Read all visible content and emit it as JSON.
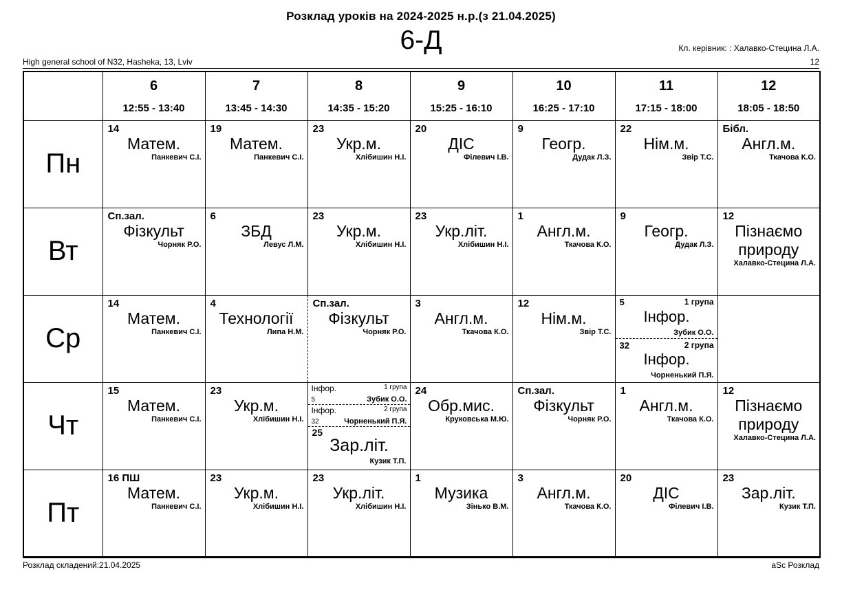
{
  "header": {
    "title": "Розклад уроків на 2024-2025 н.р.(з 21.04.2025)",
    "class_name": "6-Д",
    "class_teacher_label": "Кл. керівник: : Халавко-Стецина Л.А.",
    "page_number": "12",
    "school_name": "High general school of N32, Hasheka, 13, Lviv"
  },
  "periods": [
    {
      "number": "6",
      "time": "12:55 - 13:40"
    },
    {
      "number": "7",
      "time": "13:45 - 14:30"
    },
    {
      "number": "8",
      "time": "14:35 - 15:20"
    },
    {
      "number": "9",
      "time": "15:25 - 16:10"
    },
    {
      "number": "10",
      "time": "16:25 - 17:10"
    },
    {
      "number": "11",
      "time": "17:15 - 18:00"
    },
    {
      "number": "12",
      "time": "18:05 - 18:50"
    }
  ],
  "schedule": [
    {
      "day": "Пн",
      "cells": [
        {
          "type": "lesson",
          "room": "14",
          "subject": "Матем.",
          "teacher": "Панкевич С.І."
        },
        {
          "type": "lesson",
          "room": "19",
          "subject": "Матем.",
          "teacher": "Панкевич С.І."
        },
        {
          "type": "lesson",
          "room": "23",
          "subject": "Укр.м.",
          "teacher": "Хлібишин Н.І."
        },
        {
          "type": "lesson",
          "room": "20",
          "subject": "ДІС",
          "teacher": "Філевич І.В."
        },
        {
          "type": "lesson",
          "room": "9",
          "subject": "Геогр.",
          "teacher": "Дудак Л.З."
        },
        {
          "type": "lesson",
          "room": "22",
          "subject": "Нім.м.",
          "teacher": "Звір Т.С."
        },
        {
          "type": "lesson",
          "room": "Бібл.",
          "subject": "Англ.м.",
          "teacher": "Ткачова К.О."
        }
      ]
    },
    {
      "day": "Вт",
      "cells": [
        {
          "type": "lesson",
          "room": "Сп.зал.",
          "subject": "Фізкульт",
          "teacher": "Чорняк Р.О."
        },
        {
          "type": "lesson",
          "room": "6",
          "subject": "ЗБД",
          "teacher": "Левус Л.М."
        },
        {
          "type": "lesson",
          "room": "23",
          "subject": "Укр.м.",
          "teacher": "Хлібишин Н.І."
        },
        {
          "type": "lesson",
          "room": "23",
          "subject": "Укр.літ.",
          "teacher": "Хлібишин Н.І."
        },
        {
          "type": "lesson",
          "room": "1",
          "subject": "Англ.м.",
          "teacher": "Ткачова К.О."
        },
        {
          "type": "lesson",
          "room": "9",
          "subject": "Геогр.",
          "teacher": "Дудак Л.З."
        },
        {
          "type": "lesson",
          "room": "12",
          "subject": "Пізнаємо природу",
          "teacher": "Халавко-Стецина Л.А."
        }
      ]
    },
    {
      "day": "Ср",
      "cells": [
        {
          "type": "lesson",
          "room": "14",
          "subject": "Матем.",
          "teacher": "Панкевич С.І."
        },
        {
          "type": "lesson",
          "room": "4",
          "subject": "Технології",
          "teacher": "Липа Н.М."
        },
        {
          "type": "lesson",
          "room": "Сп.зал.",
          "subject": "Фізкульт",
          "teacher": "Чорняк Р.О.",
          "dashed_left": true
        },
        {
          "type": "lesson",
          "room": "3",
          "subject": "Англ.м.",
          "teacher": "Ткачова К.О."
        },
        {
          "type": "lesson",
          "room": "12",
          "subject": "Нім.м.",
          "teacher": "Звір Т.С."
        },
        {
          "type": "split",
          "groups": [
            {
              "room": "5",
              "group": "1 група",
              "subject": "Інфор.",
              "teacher": "Зубик О.О."
            },
            {
              "room": "32",
              "group": "2 група",
              "subject": "Інфор.",
              "teacher": "Чорненький П.Я."
            }
          ]
        },
        {
          "type": "empty"
        }
      ]
    },
    {
      "day": "Чт",
      "cells": [
        {
          "type": "lesson",
          "room": "15",
          "subject": "Матем.",
          "teacher": "Панкевич С.І."
        },
        {
          "type": "lesson",
          "room": "23",
          "subject": "Укр.м.",
          "teacher": "Хлібишин Н.І."
        },
        {
          "type": "mixed",
          "groups": [
            {
              "room": "5",
              "group": "1 група",
              "subject": "Інфор.",
              "teacher": "Зубик О.О."
            },
            {
              "room": "32",
              "group": "2 група",
              "subject": "Інфор.",
              "teacher": "Чорненький П.Я."
            }
          ],
          "lesson": {
            "room": "25",
            "subject": "Зар.літ.",
            "teacher": "Кузик Т.П."
          }
        },
        {
          "type": "lesson",
          "room": "24",
          "subject": "Обр.мис.",
          "teacher": "Круковська М.Ю."
        },
        {
          "type": "lesson",
          "room": "Сп.зал.",
          "subject": "Фізкульт",
          "teacher": "Чорняк Р.О."
        },
        {
          "type": "lesson",
          "room": "1",
          "subject": "Англ.м.",
          "teacher": "Ткачова К.О."
        },
        {
          "type": "lesson",
          "room": "12",
          "subject": "Пізнаємо природу",
          "teacher": "Халавко-Стецина Л.А."
        }
      ]
    },
    {
      "day": "Пт",
      "cells": [
        {
          "type": "lesson",
          "room": "16 ПШ",
          "subject": "Матем.",
          "teacher": "Панкевич С.І."
        },
        {
          "type": "lesson",
          "room": "23",
          "subject": "Укр.м.",
          "teacher": "Хлібишин Н.І."
        },
        {
          "type": "lesson",
          "room": "23",
          "subject": "Укр.літ.",
          "teacher": "Хлібишин Н.І."
        },
        {
          "type": "lesson",
          "room": "1",
          "subject": "Музика",
          "teacher": "Зінько В.М."
        },
        {
          "type": "lesson",
          "room": "3",
          "subject": "Англ.м.",
          "teacher": "Ткачова К.О."
        },
        {
          "type": "lesson",
          "room": "20",
          "subject": "ДІС",
          "teacher": "Філевич І.В."
        },
        {
          "type": "lesson",
          "room": "23",
          "subject": "Зар.літ.",
          "teacher": "Кузик Т.П."
        }
      ]
    }
  ],
  "footer": {
    "created": "Розклад складений:21.04.2025",
    "app": "aSc Розклад"
  }
}
